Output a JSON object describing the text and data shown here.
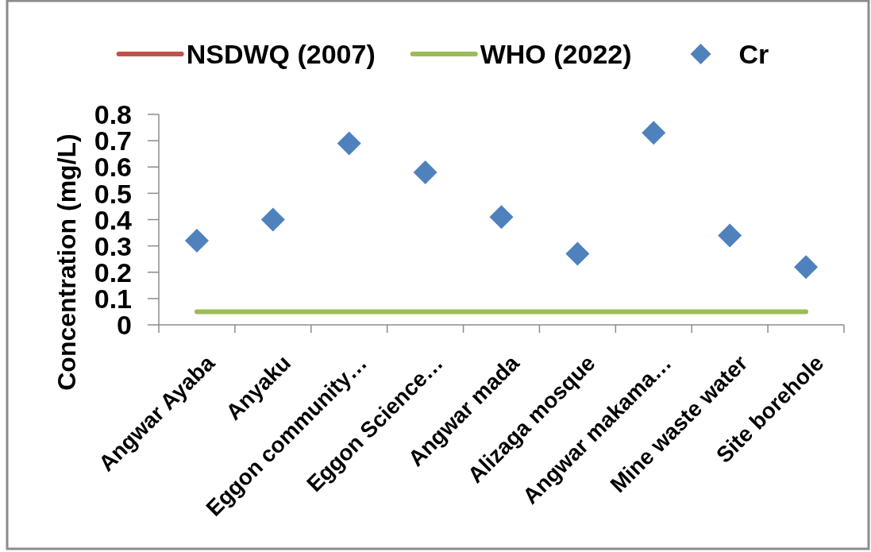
{
  "chart_data": {
    "type": "scatter",
    "ylabel": "Concentration (mg/L)",
    "categories": [
      "Angwar Ayaba",
      "Anyaku",
      "Eggon community…",
      "Eggon Science…",
      "Angwar mada",
      "Alizaga mosque",
      "Angwar makama…",
      "Mine waste water",
      "Site borehole"
    ],
    "series": [
      {
        "name": "NSDWQ (2007)",
        "type": "line",
        "color": "#c0504d",
        "values": [
          null,
          null,
          null,
          null,
          null,
          null,
          null,
          null,
          null
        ]
      },
      {
        "name": "WHO (2022)",
        "type": "line",
        "color": "#9bbb59",
        "values": [
          0.05,
          0.05,
          0.05,
          0.05,
          0.05,
          0.05,
          0.05,
          0.05,
          0.05
        ]
      },
      {
        "name": "Cr",
        "type": "scatter",
        "marker": "diamond",
        "color": "#4f81bd",
        "values": [
          0.32,
          0.4,
          0.69,
          0.58,
          0.41,
          0.27,
          0.73,
          0.34,
          0.22
        ]
      }
    ],
    "ylim": [
      0,
      0.8
    ],
    "yticks": [
      0,
      0.1,
      0.2,
      0.3,
      0.4,
      0.5,
      0.6,
      0.7,
      0.8
    ],
    "legend": "top"
  }
}
